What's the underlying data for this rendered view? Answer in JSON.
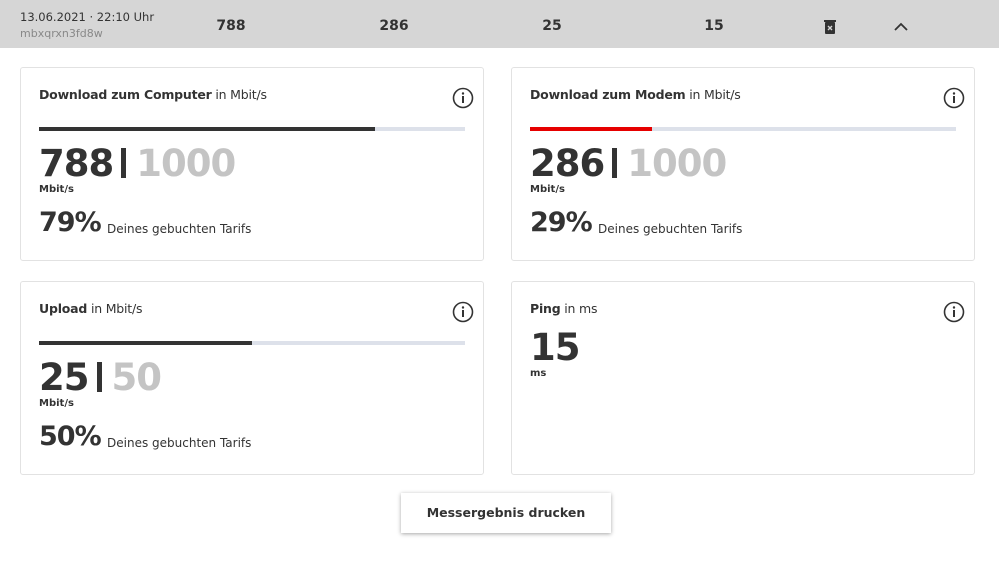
{
  "header": {
    "datetime": "13.06.2021 · 22:10 Uhr",
    "id": "mbxqrxn3fd8w",
    "values": [
      788,
      286,
      25,
      15
    ]
  },
  "cards": [
    {
      "title": "Download zum Computer",
      "unit_label": "in Mbit/s",
      "value": 788,
      "max": 1000,
      "unit": "Mbit/s",
      "percent": "79%",
      "percent_text": "Deines gebuchten Tarifs",
      "bar_color": "#333333"
    },
    {
      "title": "Download zum Modem",
      "unit_label": "in Mbit/s",
      "value": 286,
      "max": 1000,
      "unit": "Mbit/s",
      "percent": "29%",
      "percent_text": "Deines gebuchten Tarifs",
      "bar_color": "#e60000"
    },
    {
      "title": "Upload",
      "unit_label": "in Mbit/s",
      "value": 25,
      "max": 50,
      "unit": "Mbit/s",
      "percent": "50%",
      "percent_text": "Deines gebuchten Tarifs",
      "bar_color": "#333333"
    },
    {
      "title": "Ping",
      "unit_label": "in ms",
      "value": 15,
      "unit": "ms"
    }
  ],
  "button": "Messergebnis drucken"
}
